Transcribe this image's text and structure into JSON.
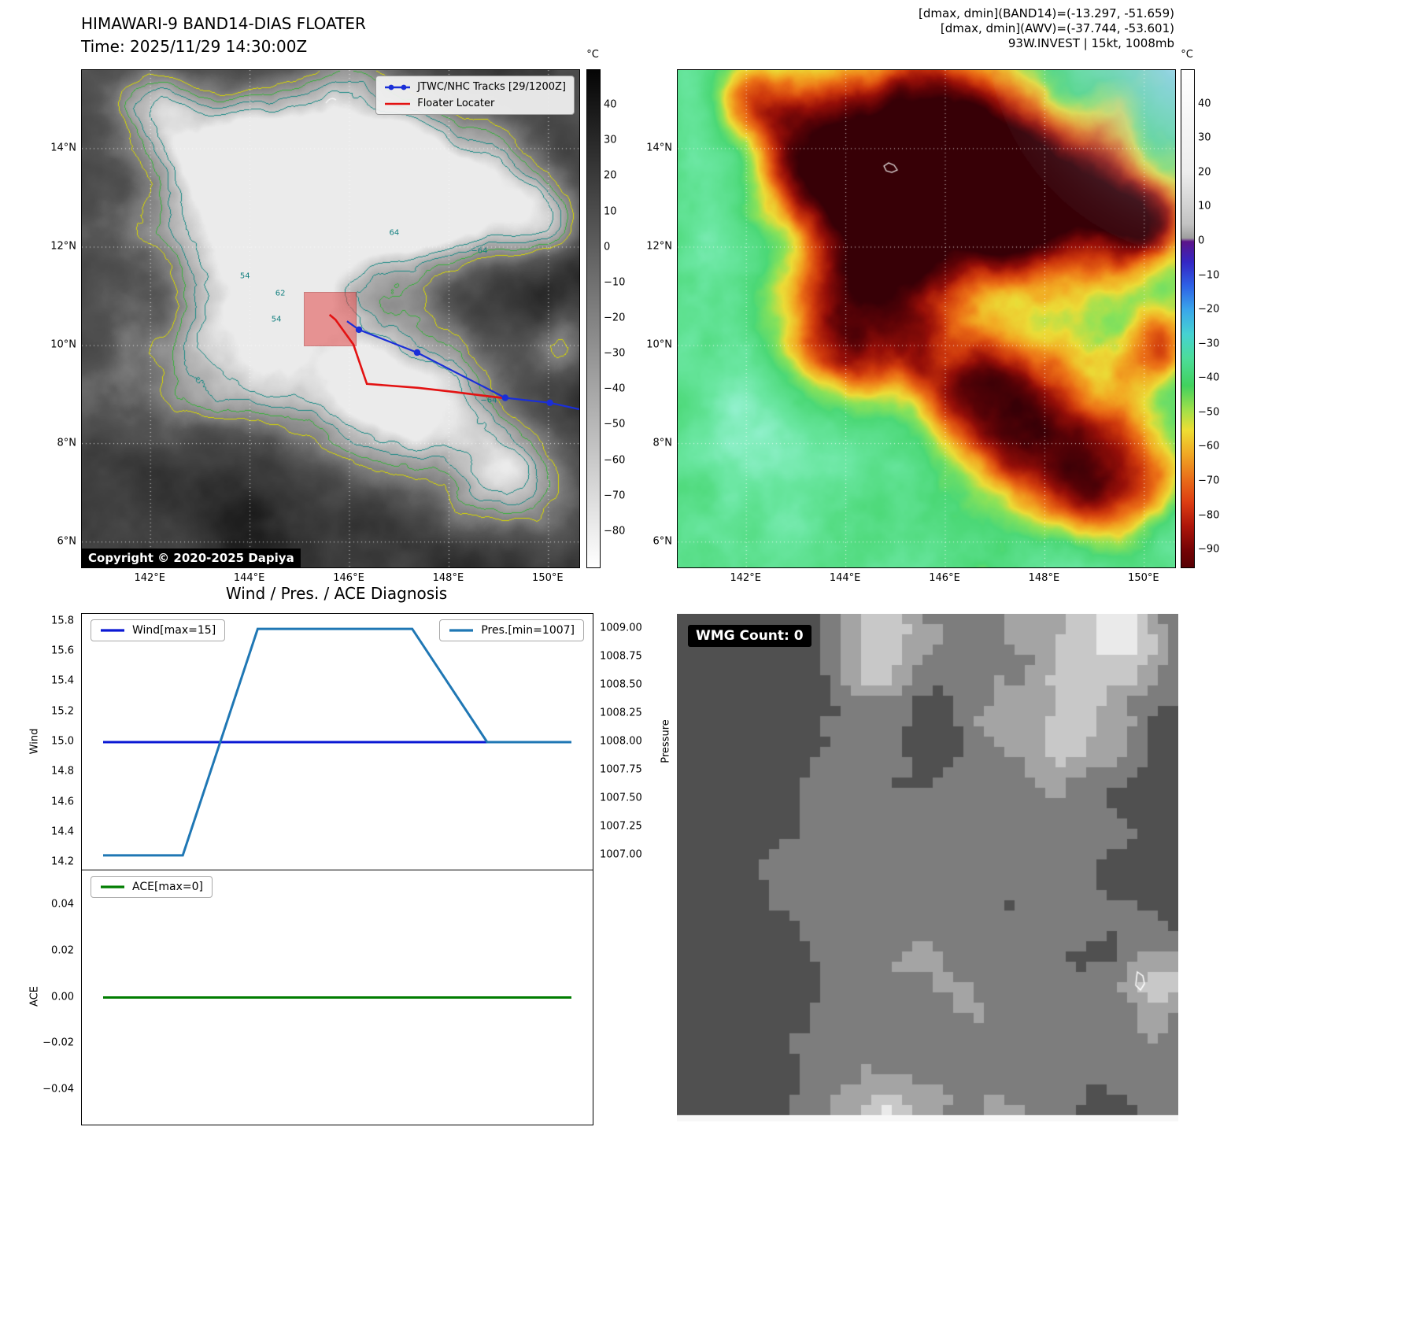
{
  "panel1": {
    "title": "HIMAWARI-9 BAND14-DIAS FLOATER",
    "subtitle": "Time: 2025/11/29 14:30:00Z",
    "legend": {
      "jtwc": "JTWC/NHC Tracks [29/1200Z]",
      "floater": "Floater Locater"
    },
    "copyright": "Copyright © 2020-2025 Dapiya",
    "colorbar": {
      "unit": "°C",
      "vmax": 50,
      "vmin": -90,
      "ticks": [
        "40",
        "30",
        "20",
        "10",
        "0",
        "−10",
        "−20",
        "−30",
        "−40",
        "−50",
        "−60",
        "−70",
        "−80"
      ],
      "gradient": [
        {
          "v": 50,
          "c": "#050505"
        },
        {
          "v": -90,
          "c": "#ffffff"
        }
      ]
    },
    "contour_labels": [
      {
        "t": "54",
        "fx": 0.391,
        "fy": 0.502
      },
      {
        "t": "62",
        "fx": 0.399,
        "fy": 0.449
      },
      {
        "t": "54",
        "fx": 0.328,
        "fy": 0.415
      },
      {
        "t": "64",
        "fx": 0.628,
        "fy": 0.328
      },
      {
        "t": "−64",
        "fx": 0.799,
        "fy": 0.364
      },
      {
        "t": "−64",
        "fx": 0.818,
        "fy": 0.665
      }
    ],
    "floater_region": {
      "fx": 0.446,
      "fy": 0.446,
      "fw": 0.103,
      "fh": 0.106,
      "color": "#e24a4a"
    }
  },
  "panel2": {
    "header_lines": [
      "[dmax, dmin](BAND14)=(-13.297, -51.659)",
      "[dmax, dmin](AWV)=(-37.744, -53.601)",
      "93W.INVEST | 15kt, 1008mb"
    ],
    "colorbar": {
      "unit": "°C",
      "vmax": 50,
      "vmin": -95,
      "ticks": [
        "40",
        "30",
        "20",
        "10",
        "0",
        "−10",
        "−20",
        "−30",
        "−40",
        "−50",
        "−60",
        "−70",
        "−80",
        "−90"
      ],
      "gradient": [
        {
          "v": 50,
          "c": "#ffffff"
        },
        {
          "v": 20,
          "c": "#ededed"
        },
        {
          "v": 5,
          "c": "#c2c2c2"
        },
        {
          "v": 1,
          "c": "#9e9e9e"
        },
        {
          "v": 0,
          "c": "#5c1489"
        },
        {
          "v": -6,
          "c": "#3426c4"
        },
        {
          "v": -13,
          "c": "#2e62e6"
        },
        {
          "v": -20,
          "c": "#3aa7ea"
        },
        {
          "v": -27,
          "c": "#46d2d2"
        },
        {
          "v": -34,
          "c": "#4cdd9a"
        },
        {
          "v": -42,
          "c": "#41d15e"
        },
        {
          "v": -49,
          "c": "#9fe04a"
        },
        {
          "v": -55,
          "c": "#eede33"
        },
        {
          "v": -62,
          "c": "#f0a824"
        },
        {
          "v": -69,
          "c": "#e96f1a"
        },
        {
          "v": -76,
          "c": "#dd3d12"
        },
        {
          "v": -83,
          "c": "#ad150a"
        },
        {
          "v": -90,
          "c": "#740305"
        },
        {
          "v": -95,
          "c": "#570003"
        }
      ]
    }
  },
  "maps": {
    "lat_ticks": [
      {
        "label": "14°N",
        "f": 0.158
      },
      {
        "label": "12°N",
        "f": 0.356
      },
      {
        "label": "10°N",
        "f": 0.554
      },
      {
        "label": "8°N",
        "f": 0.751
      },
      {
        "label": "6°N",
        "f": 0.949
      }
    ],
    "lon_ticks": [
      {
        "label": "142°E",
        "f": 0.138
      },
      {
        "label": "144°E",
        "f": 0.338
      },
      {
        "label": "146°E",
        "f": 0.538
      },
      {
        "label": "148°E",
        "f": 0.738
      },
      {
        "label": "150°E",
        "f": 0.938
      }
    ]
  },
  "tracks": {
    "jtwc": {
      "color": "#1a2fd8",
      "points": [
        [
          0.533,
          0.505
        ],
        [
          0.557,
          0.522
        ],
        [
          0.674,
          0.568
        ],
        [
          0.851,
          0.659
        ],
        [
          0.941,
          0.669
        ],
        [
          1.0,
          0.682
        ]
      ],
      "markers": [
        1,
        2,
        3,
        4
      ]
    },
    "floater": {
      "color": "#e31212",
      "points": [
        [
          0.498,
          0.492
        ],
        [
          0.51,
          0.502
        ],
        [
          0.546,
          0.552
        ],
        [
          0.573,
          0.631
        ],
        [
          0.676,
          0.639
        ],
        [
          0.747,
          0.647
        ],
        [
          0.851,
          0.66
        ]
      ]
    }
  },
  "chart_data": [
    {
      "type": "line",
      "title": "Wind / Pres. / ACE Diagnosis",
      "left_axis": {
        "label": "Wind",
        "lim": [
          14.15,
          15.85
        ],
        "ticks": [
          "15.8",
          "15.6",
          "15.4",
          "15.2",
          "15.0",
          "14.8",
          "14.6",
          "14.4",
          "14.2"
        ]
      },
      "right_axis": {
        "label": "Pressure",
        "lim": [
          1006.867,
          1009.133
        ],
        "ticks": [
          "1009.00",
          "1008.75",
          "1008.50",
          "1008.25",
          "1008.00",
          "1007.75",
          "1007.50",
          "1007.25",
          "1007.00"
        ]
      },
      "series": [
        {
          "name": "Wind[max=15]",
          "axis": "left",
          "color": "#0a18d4",
          "width": 3,
          "x": [
            0,
            1
          ],
          "y": [
            15,
            15
          ]
        },
        {
          "name": "Pres.[min=1007]",
          "axis": "right",
          "color": "#1f77b4",
          "width": 3,
          "x": [
            0,
            0.17,
            0.33,
            0.66,
            0.82,
            1
          ],
          "y": [
            1007,
            1007,
            1009,
            1009,
            1008,
            1008
          ]
        }
      ],
      "legend_position": "upper-left-and-upper-right",
      "grid": false
    },
    {
      "type": "line",
      "title": "",
      "left_axis": {
        "label": "ACE",
        "lim": [
          -0.055,
          0.055
        ],
        "ticks": [
          "0.04",
          "0.02",
          "0.00",
          "−0.02",
          "−0.04"
        ]
      },
      "series": [
        {
          "name": "ACE[max=0]",
          "axis": "left",
          "color": "#007d00",
          "width": 3,
          "x": [
            0,
            1
          ],
          "y": [
            0,
            0
          ]
        }
      ],
      "legend_position": "upper-left",
      "grid": false
    }
  ],
  "panel4": {
    "wmg_label": "WMG Count: 0"
  }
}
